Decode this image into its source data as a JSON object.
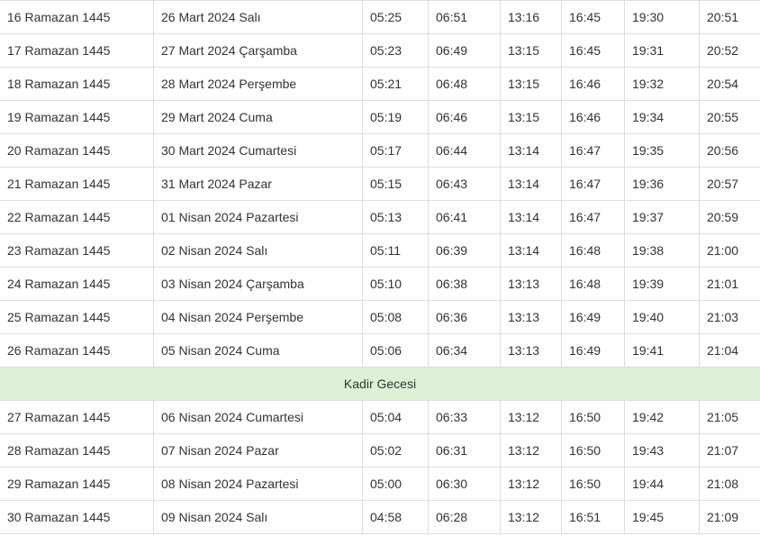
{
  "rows": [
    {
      "hijri": "16 Ramazan 1445",
      "date": "26 Mart 2024 Salı",
      "imsak": "05:25",
      "gunes": "06:51",
      "ogle": "13:16",
      "ikindi": "16:45",
      "aksam": "19:30",
      "yatsi": "20:51"
    },
    {
      "hijri": "17 Ramazan 1445",
      "date": "27 Mart 2024 Çarşamba",
      "imsak": "05:23",
      "gunes": "06:49",
      "ogle": "13:15",
      "ikindi": "16:45",
      "aksam": "19:31",
      "yatsi": "20:52"
    },
    {
      "hijri": "18 Ramazan 1445",
      "date": "28 Mart 2024 Perşembe",
      "imsak": "05:21",
      "gunes": "06:48",
      "ogle": "13:15",
      "ikindi": "16:46",
      "aksam": "19:32",
      "yatsi": "20:54"
    },
    {
      "hijri": "19 Ramazan 1445",
      "date": "29 Mart 2024 Cuma",
      "imsak": "05:19",
      "gunes": "06:46",
      "ogle": "13:15",
      "ikindi": "16:46",
      "aksam": "19:34",
      "yatsi": "20:55"
    },
    {
      "hijri": "20 Ramazan 1445",
      "date": "30 Mart 2024 Cumartesi",
      "imsak": "05:17",
      "gunes": "06:44",
      "ogle": "13:14",
      "ikindi": "16:47",
      "aksam": "19:35",
      "yatsi": "20:56"
    },
    {
      "hijri": "21 Ramazan 1445",
      "date": "31 Mart 2024 Pazar",
      "imsak": "05:15",
      "gunes": "06:43",
      "ogle": "13:14",
      "ikindi": "16:47",
      "aksam": "19:36",
      "yatsi": "20:57"
    },
    {
      "hijri": "22 Ramazan 1445",
      "date": "01 Nisan 2024 Pazartesi",
      "imsak": "05:13",
      "gunes": "06:41",
      "ogle": "13:14",
      "ikindi": "16:47",
      "aksam": "19:37",
      "yatsi": "20:59"
    },
    {
      "hijri": "23 Ramazan 1445",
      "date": "02 Nisan 2024 Salı",
      "imsak": "05:11",
      "gunes": "06:39",
      "ogle": "13:14",
      "ikindi": "16:48",
      "aksam": "19:38",
      "yatsi": "21:00"
    },
    {
      "hijri": "24 Ramazan 1445",
      "date": "03 Nisan 2024 Çarşamba",
      "imsak": "05:10",
      "gunes": "06:38",
      "ogle": "13:13",
      "ikindi": "16:48",
      "aksam": "19:39",
      "yatsi": "21:01"
    },
    {
      "hijri": "25 Ramazan 1445",
      "date": "04 Nisan 2024 Perşembe",
      "imsak": "05:08",
      "gunes": "06:36",
      "ogle": "13:13",
      "ikindi": "16:49",
      "aksam": "19:40",
      "yatsi": "21:03"
    },
    {
      "hijri": "26 Ramazan 1445",
      "date": "05 Nisan 2024 Cuma",
      "imsak": "05:06",
      "gunes": "06:34",
      "ogle": "13:13",
      "ikindi": "16:49",
      "aksam": "19:41",
      "yatsi": "21:04"
    },
    {
      "special": "Kadir Gecesi"
    },
    {
      "hijri": "27 Ramazan 1445",
      "date": "06 Nisan 2024 Cumartesi",
      "imsak": "05:04",
      "gunes": "06:33",
      "ogle": "13:12",
      "ikindi": "16:50",
      "aksam": "19:42",
      "yatsi": "21:05"
    },
    {
      "hijri": "28 Ramazan 1445",
      "date": "07 Nisan 2024 Pazar",
      "imsak": "05:02",
      "gunes": "06:31",
      "ogle": "13:12",
      "ikindi": "16:50",
      "aksam": "19:43",
      "yatsi": "21:07"
    },
    {
      "hijri": "29 Ramazan 1445",
      "date": "08 Nisan 2024 Pazartesi",
      "imsak": "05:00",
      "gunes": "06:30",
      "ogle": "13:12",
      "ikindi": "16:50",
      "aksam": "19:44",
      "yatsi": "21:08"
    },
    {
      "hijri": "30 Ramazan 1445",
      "date": "09 Nisan 2024 Salı",
      "imsak": "04:58",
      "gunes": "06:28",
      "ogle": "13:12",
      "ikindi": "16:51",
      "aksam": "19:45",
      "yatsi": "21:09"
    }
  ],
  "colors": {
    "special_row_bg": "#dff0d8",
    "border": "#dddddd",
    "text": "#333333"
  }
}
